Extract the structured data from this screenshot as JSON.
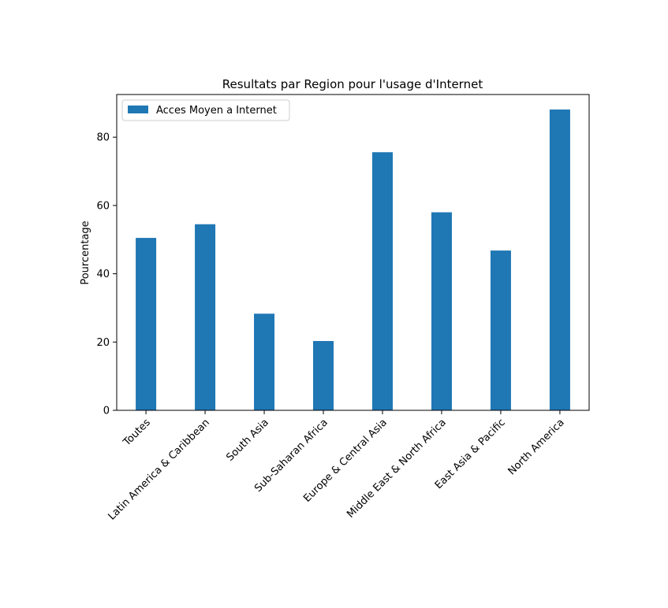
{
  "chart_data": {
    "type": "bar",
    "title": "Resultats par Region pour l'usage d'Internet",
    "xlabel": "",
    "ylabel": "Pourcentage",
    "categories": [
      "Toutes",
      "Latin America & Caribbean",
      "South Asia",
      "Sub-Saharan Africa",
      "Europe & Central Asia",
      "Middle East & North Africa",
      "East Asia & Pacific",
      "North America"
    ],
    "series": [
      {
        "name": "Acces Moyen a Internet",
        "values": [
          50.5,
          54.5,
          28.3,
          20.3,
          75.6,
          58.0,
          46.8,
          88.1
        ],
        "color": "#1f77b4"
      }
    ],
    "ylim": [
      0,
      92.5
    ],
    "yticks": [
      0,
      20,
      40,
      60,
      80
    ],
    "legend": "top-left",
    "grid": false
  }
}
